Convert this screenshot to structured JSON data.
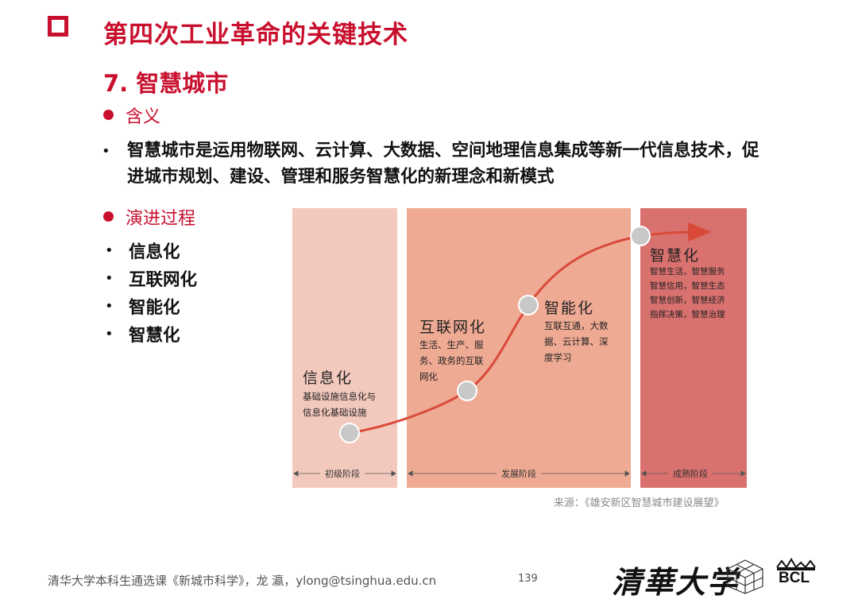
{
  "slide_title": "第四次工业革命的关键技术",
  "section_title": "7. 智慧城市",
  "meaning": {
    "heading": "含义",
    "definition": "智慧城市是运用物联网、云计算、大数据、空间地理信息集成等新一代信息技术，促进城市规划、建设、管理和服务智慧化的新理念和新模式"
  },
  "evolution": {
    "heading": "演进过程",
    "items": [
      "信息化",
      "互联网化",
      "智能化",
      "智慧化"
    ]
  },
  "diagram": {
    "stages": [
      {
        "name": "信息化",
        "desc": [
          "基础设施信息化与",
          "信息化基础设施"
        ]
      },
      {
        "name": "互联网化",
        "desc": [
          "生活、生产、服",
          "务、政务的互联",
          "网化"
        ]
      },
      {
        "name": "智能化",
        "desc": [
          "互联互通，大数",
          "据、云计算、深",
          "度学习"
        ]
      },
      {
        "name": "智慧化",
        "desc": [
          "智慧生活，智慧服务",
          "智慧信用，智慧生态",
          "智慧创新，智慧经济",
          "指挥决策，智慧治理"
        ]
      }
    ],
    "phases": [
      "初级阶段",
      "发展阶段",
      "成熟阶段"
    ],
    "source": "来源：《雄安新区智慧城市建设展望》",
    "colors": {
      "panel1": "#f3c9bd",
      "panel2": "#efaa93",
      "panel3": "#d9716f",
      "curve": "#d94a3a"
    }
  },
  "footer": {
    "course": "清华大学本科生通选课《新城市科学》，龙  瀛，ylong@tsinghua.edu.cn",
    "page": "139",
    "university_logo": "清華大学",
    "lab_logo": "BCL"
  }
}
